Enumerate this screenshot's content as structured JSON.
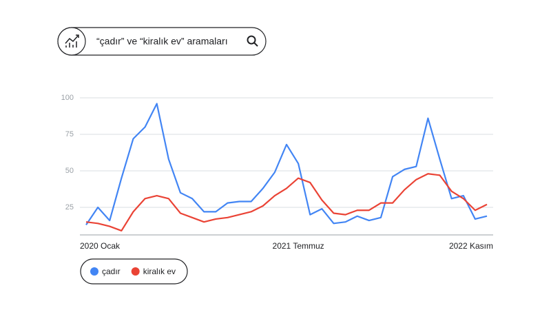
{
  "chart_data": {
    "type": "line",
    "title": "“çadır” ve “kiralık ev” aramaları",
    "categories": [
      "2020 Ocak",
      null,
      null,
      null,
      null,
      null,
      null,
      null,
      null,
      null,
      null,
      null,
      null,
      null,
      null,
      null,
      null,
      null,
      "2021 Temmuz",
      null,
      null,
      null,
      null,
      null,
      null,
      null,
      null,
      null,
      null,
      null,
      null,
      null,
      null,
      null,
      "2022 Kasım"
    ],
    "series": [
      {
        "name": "çadır",
        "color": "#4285f4",
        "values": [
          13,
          25,
          16,
          45,
          72,
          80,
          96,
          58,
          35,
          31,
          22,
          22,
          28,
          29,
          29,
          38,
          49,
          68,
          55,
          20,
          24,
          14,
          15,
          19,
          16,
          18,
          46,
          51,
          53,
          86,
          58,
          31,
          33,
          17,
          19
        ]
      },
      {
        "name": "kiralık ev",
        "color": "#ea4335",
        "values": [
          15,
          14,
          12,
          9,
          22,
          31,
          33,
          31,
          21,
          18,
          15,
          17,
          18,
          20,
          22,
          26,
          33,
          38,
          45,
          42,
          30,
          21,
          20,
          23,
          23,
          28,
          28,
          37,
          44,
          48,
          47,
          36,
          31,
          23,
          27
        ]
      }
    ],
    "ylim": [
      6,
      100
    ],
    "yticks": [
      25,
      50,
      75,
      100
    ],
    "grid": true
  }
}
